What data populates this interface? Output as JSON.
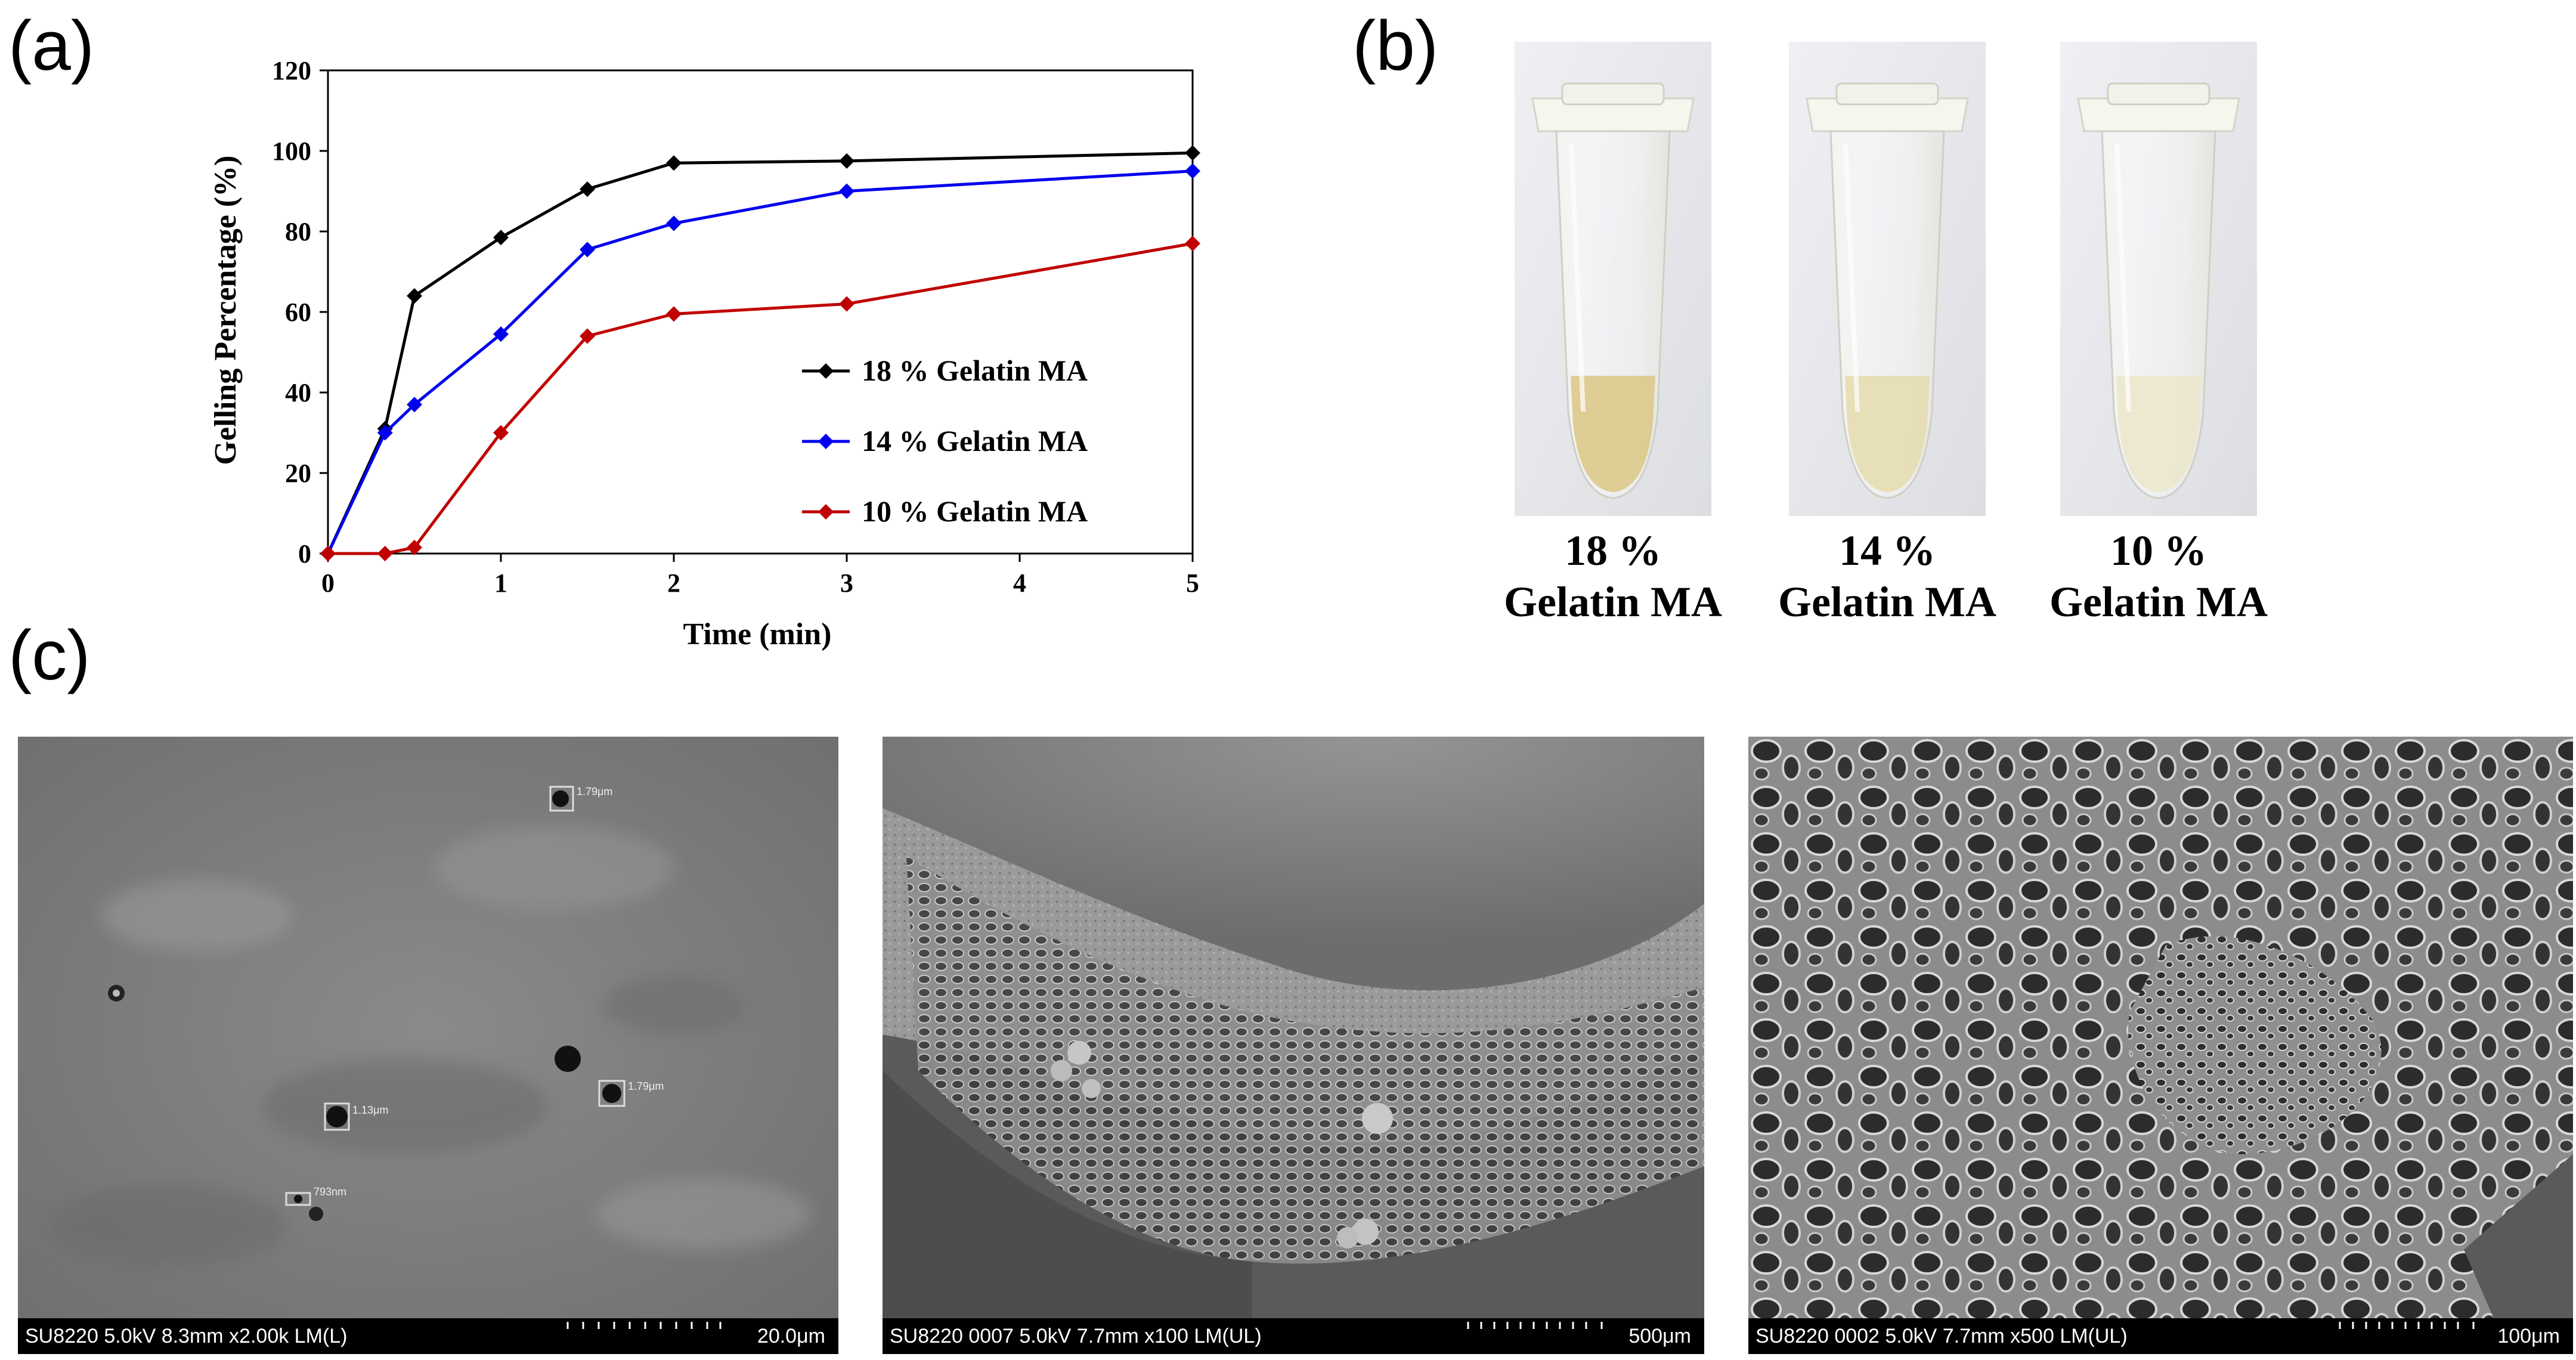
{
  "panels": {
    "a_label": "(a)",
    "b_label": "(b)",
    "c_label": "(c)"
  },
  "chart_data": {
    "type": "line",
    "title": "",
    "xlabel": "Time (min)",
    "ylabel": "Gelling Percentage (%)",
    "xlim": [
      0,
      5
    ],
    "ylim": [
      0,
      120
    ],
    "xticks": [
      0,
      1,
      2,
      3,
      4,
      5
    ],
    "yticks": [
      0,
      20,
      40,
      60,
      80,
      100,
      120
    ],
    "grid": false,
    "legend_position": "center-right",
    "series": [
      {
        "name": "18 % Gelatin MA",
        "color": "#000000",
        "x": [
          0,
          0.33,
          0.5,
          1,
          1.5,
          2,
          3,
          5
        ],
        "y": [
          0,
          31,
          64,
          78.5,
          90.5,
          97,
          97.5,
          99.5
        ]
      },
      {
        "name": "14 % Gelatin MA",
        "color": "#0000ee",
        "x": [
          0,
          0.33,
          0.5,
          1,
          1.5,
          2,
          3,
          5
        ],
        "y": [
          0,
          30,
          37,
          54.5,
          75.5,
          82,
          90,
          95
        ]
      },
      {
        "name": "10 % Gelatin MA",
        "color": "#c00000",
        "x": [
          0,
          0.33,
          0.5,
          1,
          1.5,
          2,
          3,
          5
        ],
        "y": [
          0,
          0,
          1.5,
          30,
          54,
          59.5,
          62,
          77
        ]
      }
    ]
  },
  "tubes": [
    {
      "line1": "18 %",
      "line2": "Gelatin MA",
      "fill_color": "#dcc98a"
    },
    {
      "line1": "14 %",
      "line2": "Gelatin MA",
      "fill_color": "#e6ddb0"
    },
    {
      "line1": "10 %",
      "line2": "Gelatin MA",
      "fill_color": "#ece7cc"
    }
  ],
  "sem_images": [
    {
      "info": "SU8220 5.0kV 8.3mm x2.00k LM(L)",
      "scale": "20.0μm"
    },
    {
      "info": "SU8220 0007 5.0kV 7.7mm x100 LM(UL)",
      "scale": "500μm"
    },
    {
      "info": "SU8220 0002 5.0kV 7.7mm x500 LM(UL)",
      "scale": "100μm"
    }
  ],
  "sem_annotations": {
    "a": "1.79μm",
    "b": "1.13μm",
    "c": "1.79μm",
    "d": "793nm"
  }
}
